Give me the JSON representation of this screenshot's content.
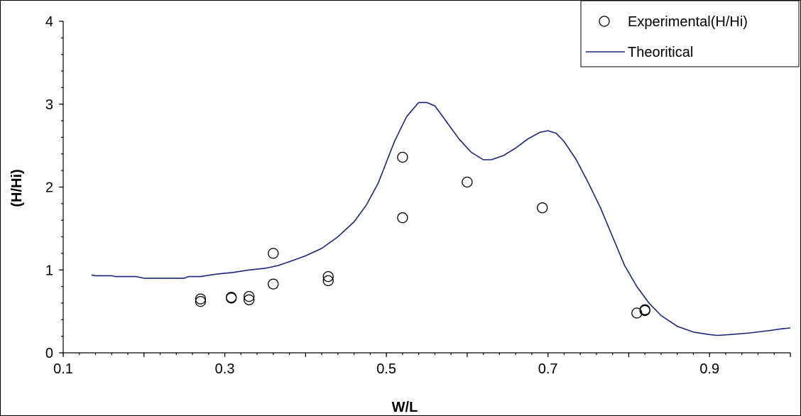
{
  "chart_data": {
    "type": "scatter",
    "title": "",
    "xlabel": "W/L",
    "ylabel": "(H/Hi)",
    "xlim": [
      0.1,
      1.0
    ],
    "ylim": [
      0,
      4
    ],
    "x_ticks": [
      0.1,
      0.2,
      0.3,
      0.4,
      0.5,
      0.6,
      0.7,
      0.8,
      0.9,
      1.0
    ],
    "x_tick_labels": [
      "0.1",
      "",
      "0.3",
      "",
      "0.5",
      "",
      "0.7",
      "",
      "0.9",
      ""
    ],
    "y_ticks": [
      0,
      1,
      2,
      3,
      4
    ],
    "y_tick_labels": [
      "0",
      "1",
      "2",
      "3",
      "4"
    ],
    "grid": false,
    "legend_position": "top-right",
    "series": [
      {
        "name": "Experimental(H/Hi)",
        "kind": "scatter",
        "marker": "open-circle",
        "color": "#000000",
        "points": [
          [
            0.27,
            0.65
          ],
          [
            0.27,
            0.62
          ],
          [
            0.308,
            0.67
          ],
          [
            0.308,
            0.66
          ],
          [
            0.33,
            0.68
          ],
          [
            0.33,
            0.64
          ],
          [
            0.36,
            1.2
          ],
          [
            0.36,
            0.83
          ],
          [
            0.428,
            0.92
          ],
          [
            0.428,
            0.87
          ],
          [
            0.52,
            2.36
          ],
          [
            0.52,
            1.63
          ],
          [
            0.6,
            2.06
          ],
          [
            0.693,
            1.75
          ],
          [
            0.81,
            0.48
          ],
          [
            0.82,
            0.52
          ],
          [
            0.82,
            0.51
          ]
        ]
      },
      {
        "name": "Theoritical",
        "kind": "line",
        "color": "#1a237e",
        "points": [
          [
            0.135,
            0.94
          ],
          [
            0.14,
            0.93
          ],
          [
            0.16,
            0.93
          ],
          [
            0.165,
            0.92
          ],
          [
            0.19,
            0.92
          ],
          [
            0.2,
            0.9
          ],
          [
            0.25,
            0.9
          ],
          [
            0.255,
            0.92
          ],
          [
            0.27,
            0.92
          ],
          [
            0.29,
            0.95
          ],
          [
            0.3,
            0.96
          ],
          [
            0.31,
            0.97
          ],
          [
            0.33,
            1.0
          ],
          [
            0.35,
            1.02
          ],
          [
            0.365,
            1.05
          ],
          [
            0.38,
            1.1
          ],
          [
            0.4,
            1.17
          ],
          [
            0.42,
            1.26
          ],
          [
            0.44,
            1.4
          ],
          [
            0.46,
            1.58
          ],
          [
            0.475,
            1.78
          ],
          [
            0.49,
            2.05
          ],
          [
            0.5,
            2.3
          ],
          [
            0.51,
            2.55
          ],
          [
            0.525,
            2.85
          ],
          [
            0.54,
            3.02
          ],
          [
            0.55,
            3.02
          ],
          [
            0.56,
            2.98
          ],
          [
            0.575,
            2.78
          ],
          [
            0.59,
            2.58
          ],
          [
            0.605,
            2.42
          ],
          [
            0.62,
            2.33
          ],
          [
            0.63,
            2.33
          ],
          [
            0.645,
            2.38
          ],
          [
            0.66,
            2.47
          ],
          [
            0.675,
            2.58
          ],
          [
            0.69,
            2.66
          ],
          [
            0.7,
            2.68
          ],
          [
            0.71,
            2.65
          ],
          [
            0.72,
            2.55
          ],
          [
            0.735,
            2.33
          ],
          [
            0.75,
            2.05
          ],
          [
            0.765,
            1.75
          ],
          [
            0.78,
            1.4
          ],
          [
            0.795,
            1.05
          ],
          [
            0.81,
            0.8
          ],
          [
            0.825,
            0.6
          ],
          [
            0.84,
            0.45
          ],
          [
            0.86,
            0.32
          ],
          [
            0.88,
            0.25
          ],
          [
            0.9,
            0.22
          ],
          [
            0.91,
            0.21
          ],
          [
            0.925,
            0.22
          ],
          [
            0.95,
            0.24
          ],
          [
            0.975,
            0.27
          ],
          [
            0.99,
            0.29
          ],
          [
            1.0,
            0.3
          ]
        ]
      }
    ]
  }
}
